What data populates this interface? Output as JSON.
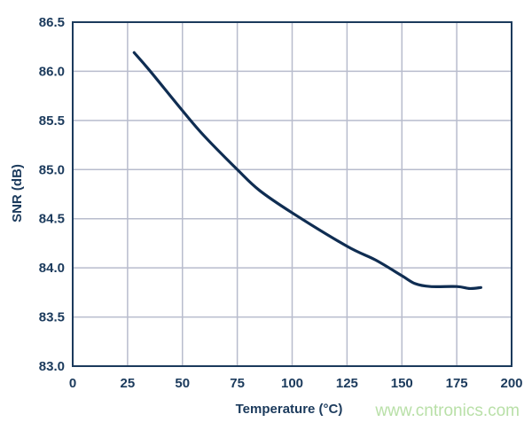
{
  "chart_data": {
    "type": "line",
    "title": "",
    "xlabel": "Temperature (°C)",
    "ylabel": "SNR (dB)",
    "xlim": [
      0,
      200
    ],
    "ylim": [
      83.0,
      86.5
    ],
    "xticks": [
      "0",
      "25",
      "50",
      "75",
      "100",
      "125",
      "150",
      "175",
      "200"
    ],
    "yticks": [
      "83.0",
      "83.5",
      "84.0",
      "84.5",
      "85.0",
      "85.5",
      "86.0",
      "86.5"
    ],
    "grid": true,
    "line_color": "#0f2d52",
    "grid_color": "#b8bccd",
    "series": [
      {
        "x": [
          28,
          35,
          50,
          60,
          75,
          85,
          100,
          125,
          138,
          150,
          156,
          163,
          175,
          181,
          186
        ],
        "y": [
          86.19,
          86.01,
          85.6,
          85.34,
          85.0,
          84.79,
          84.56,
          84.22,
          84.08,
          83.92,
          83.84,
          83.81,
          83.81,
          83.79,
          83.8
        ]
      }
    ]
  },
  "watermark": "www.cntronics.com"
}
